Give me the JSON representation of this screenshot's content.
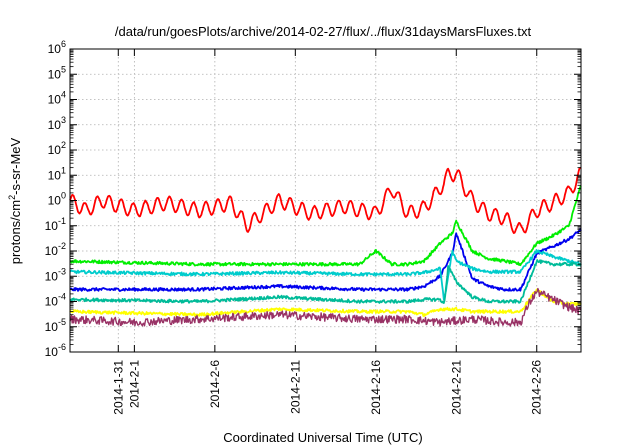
{
  "chart_data": {
    "type": "line",
    "title": "/data/run/goesPlots/archive/2014-02-27/flux/../flux/31daysMarsFluxes.txt",
    "xlabel": "Coordinated Universal Time (UTC)",
    "ylabel": {
      "pre": "protons/cm",
      "sup": "2",
      "post": "-s-sr-MeV"
    },
    "xlim": [
      "2014-01-28",
      "2014-02-28 18:00"
    ],
    "ylim": [
      1e-06,
      1000000.0
    ],
    "yscale": "log",
    "grid": true,
    "x_ticks": [
      "2014-1-31",
      "2014-2-1",
      "2014-2-6",
      "2014-2-11",
      "2014-2-16",
      "2014-2-21",
      "2014-2-26"
    ],
    "y_ticks": [
      {
        "value": 1e-06,
        "base": "10",
        "exp": "-6"
      },
      {
        "value": 1e-05,
        "base": "10",
        "exp": "-5"
      },
      {
        "value": 0.0001,
        "base": "10",
        "exp": "-4"
      },
      {
        "value": 0.001,
        "base": "10",
        "exp": "-3"
      },
      {
        "value": 0.01,
        "base": "10",
        "exp": "-2"
      },
      {
        "value": 0.1,
        "base": "10",
        "exp": "-1"
      },
      {
        "value": 1,
        "base": "10",
        "exp": "0"
      },
      {
        "value": 10,
        "base": "10",
        "exp": "1"
      },
      {
        "value": 100,
        "base": "10",
        "exp": "2"
      },
      {
        "value": 1000,
        "base": "10",
        "exp": "3"
      },
      {
        "value": 10000,
        "base": "10",
        "exp": "4"
      },
      {
        "value": 100000,
        "base": "10",
        "exp": "5"
      },
      {
        "value": 1000000,
        "base": "10",
        "exp": "6"
      }
    ],
    "series": [
      {
        "color": "#ff0000",
        "x": [
          "2014-01-28",
          "2014-01-29",
          "2014-01-30",
          "2014-02-01",
          "2014-02-03",
          "2014-02-05",
          "2014-02-07",
          "2014-02-08",
          "2014-02-10",
          "2014-02-12",
          "2014-02-14",
          "2014-02-16",
          "2014-02-17",
          "2014-02-18",
          "2014-02-19",
          "2014-02-20",
          "2014-02-20 12:00",
          "2014-02-21",
          "2014-02-22",
          "2014-02-23",
          "2014-02-24",
          "2014-02-25",
          "2014-02-26",
          "2014-02-27",
          "2014-02-28",
          "2014-02-28 18:00"
        ],
        "y": [
          1.0,
          0.4,
          1.0,
          0.4,
          0.8,
          0.4,
          0.8,
          0.1,
          1.0,
          0.3,
          0.6,
          0.3,
          3.0,
          0.3,
          0.5,
          3.0,
          10,
          12,
          1.0,
          0.3,
          0.2,
          0.06,
          0.4,
          0.8,
          2.0,
          12
        ]
      },
      {
        "color": "#00ee00",
        "x": [
          "2014-01-28",
          "2014-02-05",
          "2014-02-10",
          "2014-02-15",
          "2014-02-16",
          "2014-02-17",
          "2014-02-18",
          "2014-02-19",
          "2014-02-20",
          "2014-02-20 18:00",
          "2014-02-21",
          "2014-02-22",
          "2014-02-23",
          "2014-02-24",
          "2014-02-25",
          "2014-02-26",
          "2014-02-27",
          "2014-02-28",
          "2014-02-28 18:00"
        ],
        "y": [
          0.004,
          0.003,
          0.003,
          0.003,
          0.01,
          0.003,
          0.003,
          0.004,
          0.02,
          0.05,
          0.15,
          0.01,
          0.005,
          0.004,
          0.003,
          0.02,
          0.04,
          0.1,
          4.0
        ]
      },
      {
        "color": "#0000ee",
        "x": [
          "2014-01-28",
          "2014-02-05",
          "2014-02-10",
          "2014-02-15",
          "2014-02-18",
          "2014-02-19",
          "2014-02-20",
          "2014-02-20 18:00",
          "2014-02-21",
          "2014-02-22",
          "2014-02-23",
          "2014-02-24",
          "2014-02-25",
          "2014-02-26",
          "2014-02-27",
          "2014-02-28",
          "2014-02-28 18:00"
        ],
        "y": [
          0.0003,
          0.0003,
          0.0004,
          0.0003,
          0.0003,
          0.0004,
          0.001,
          0.008,
          0.05,
          0.0008,
          0.0004,
          0.0003,
          0.0003,
          0.008,
          0.015,
          0.03,
          0.07
        ]
      },
      {
        "color": "#00cccc",
        "x": [
          "2014-01-28",
          "2014-02-05",
          "2014-02-10",
          "2014-02-15",
          "2014-02-18",
          "2014-02-19",
          "2014-02-20",
          "2014-02-20 06:00",
          "2014-02-20 18:00",
          "2014-02-21",
          "2014-02-22",
          "2014-02-23",
          "2014-02-24",
          "2014-02-25",
          "2014-02-26",
          "2014-02-27",
          "2014-02-28",
          "2014-02-28 18:00"
        ],
        "y": [
          0.0015,
          0.0012,
          0.0014,
          0.0012,
          0.0012,
          0.0014,
          0.002,
          0.0001,
          0.01,
          0.004,
          0.002,
          0.0015,
          0.0015,
          0.0015,
          0.01,
          0.006,
          0.004,
          0.003
        ]
      },
      {
        "color": "#00bb99",
        "x": [
          "2014-01-28",
          "2014-02-05",
          "2014-02-10",
          "2014-02-15",
          "2014-02-18",
          "2014-02-19",
          "2014-02-20",
          "2014-02-20 06:00",
          "2014-02-20 12:00",
          "2014-02-21",
          "2014-02-22",
          "2014-02-23",
          "2014-02-24",
          "2014-02-25",
          "2014-02-26",
          "2014-02-27",
          "2014-02-28",
          "2014-02-28 18:00"
        ],
        "y": [
          0.00012,
          0.0001,
          0.00015,
          0.0001,
          0.0001,
          0.00012,
          0.00012,
          8e-05,
          0.0025,
          0.0006,
          0.00015,
          0.0001,
          0.0001,
          0.0001,
          0.004,
          0.003,
          0.003,
          0.003
        ]
      },
      {
        "color": "#ffff00",
        "x": [
          "2014-01-28",
          "2014-02-05",
          "2014-02-10",
          "2014-02-15",
          "2014-02-18",
          "2014-02-19",
          "2014-02-20",
          "2014-02-21",
          "2014-02-22",
          "2014-02-23",
          "2014-02-24",
          "2014-02-25",
          "2014-02-26",
          "2014-02-27",
          "2014-02-28",
          "2014-02-28 18:00"
        ],
        "y": [
          4e-05,
          3e-05,
          5e-05,
          4e-05,
          4e-05,
          3e-05,
          5e-05,
          5e-05,
          4e-05,
          4e-05,
          4e-05,
          4e-05,
          0.0003,
          0.0001,
          8e-05,
          8e-05
        ]
      },
      {
        "color": "#993366",
        "x": [
          "2014-01-28",
          "2014-02-01",
          "2014-02-05",
          "2014-02-10",
          "2014-02-15",
          "2014-02-18",
          "2014-02-20",
          "2014-02-22",
          "2014-02-24",
          "2014-02-25",
          "2014-02-25 12:00",
          "2014-02-26",
          "2014-02-27",
          "2014-02-28",
          "2014-02-28 18:00"
        ],
        "y": [
          2e-05,
          1.5e-05,
          2e-05,
          3e-05,
          2e-05,
          2e-05,
          1.5e-05,
          2e-05,
          1.5e-05,
          1.5e-05,
          8e-05,
          0.00025,
          0.00012,
          6e-05,
          4e-05
        ]
      }
    ]
  }
}
